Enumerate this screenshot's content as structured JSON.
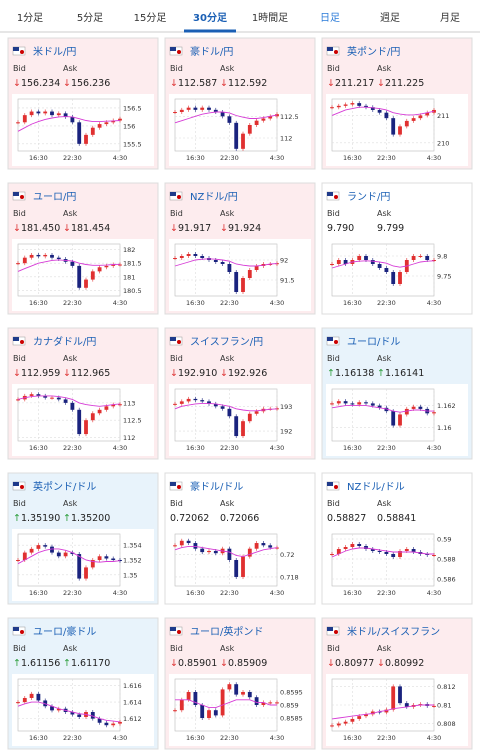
{
  "tabs": [
    "1分足",
    "5分足",
    "15分足",
    "30分足",
    "1時間足",
    "日足",
    "週足",
    "月足"
  ],
  "active_tab": 3,
  "link_tab": 5,
  "labels": {
    "bid": "Bid",
    "ask": "Ask"
  },
  "xlim": [
    0,
    15
  ],
  "xticks": [
    {
      "value": 3,
      "label": "16:30"
    },
    {
      "value": 8,
      "label": "22:30"
    },
    {
      "value": 15,
      "label": "4:30"
    }
  ],
  "tiles": [
    {
      "name": "米ドル/円",
      "arrow": "↓",
      "bid": "156.234",
      "ask": "156.236",
      "ylim": [
        155.3,
        156.75
      ],
      "yticks": [
        155.5,
        156,
        156.5
      ],
      "values": [
        156.1,
        156.3,
        156.4,
        156.35,
        156.4,
        156.3,
        156.35,
        156.25,
        156.1,
        155.5,
        155.75,
        155.95,
        156.05,
        156.1,
        156.15,
        156.2
      ],
      "ma": [
        155.85,
        155.95,
        156.05,
        156.12,
        156.18,
        156.22,
        156.25,
        156.26,
        156.25,
        156.2,
        156.15,
        156.12,
        156.12,
        156.13,
        156.14,
        156.15
      ]
    },
    {
      "name": "豪ドル/円",
      "arrow": "↓",
      "bid": "112.587",
      "ask": "112.592",
      "ylim": [
        111.7,
        112.9
      ],
      "yticks": [
        112,
        112.5
      ],
      "values": [
        112.6,
        112.65,
        112.7,
        112.65,
        112.7,
        112.65,
        112.6,
        112.5,
        112.35,
        111.75,
        112.1,
        112.3,
        112.4,
        112.45,
        112.5,
        112.55
      ],
      "ma": [
        112.35,
        112.4,
        112.45,
        112.5,
        112.55,
        112.58,
        112.6,
        112.6,
        112.58,
        112.52,
        112.48,
        112.45,
        112.45,
        112.47,
        112.5,
        112.53
      ]
    },
    {
      "name": "英ポンド/円",
      "arrow": "↓",
      "bid": "211.217",
      "ask": "211.225",
      "ylim": [
        209.7,
        211.6
      ],
      "yticks": [
        210,
        211
      ],
      "values": [
        211.3,
        211.35,
        211.4,
        211.45,
        211.35,
        211.3,
        211.2,
        211.1,
        210.9,
        210.3,
        210.6,
        210.8,
        210.9,
        211.0,
        211.1,
        211.2
      ],
      "ma": [
        211.0,
        211.1,
        211.2,
        211.25,
        211.3,
        211.3,
        211.28,
        211.25,
        211.2,
        211.1,
        211.05,
        211.02,
        211.02,
        211.05,
        211.1,
        211.15
      ]
    },
    {
      "name": "ユーロ/円",
      "arrow": "↓",
      "bid": "181.450",
      "ask": "181.454",
      "ylim": [
        180.3,
        182.2
      ],
      "yticks": [
        180.5,
        181,
        181.5,
        182
      ],
      "values": [
        181.5,
        181.7,
        181.8,
        181.75,
        181.8,
        181.7,
        181.65,
        181.55,
        181.4,
        180.6,
        180.9,
        181.2,
        181.35,
        181.4,
        181.45,
        181.45
      ],
      "ma": [
        181.2,
        181.3,
        181.4,
        181.5,
        181.55,
        181.6,
        181.62,
        181.6,
        181.58,
        181.5,
        181.45,
        181.42,
        181.42,
        181.43,
        181.45,
        181.46
      ]
    },
    {
      "name": "NZドル/円",
      "arrow": "↓",
      "bid": "91.917",
      "ask": "91.924",
      "ylim": [
        91.1,
        92.4
      ],
      "yticks": [
        91.5,
        92
      ],
      "values": [
        92.05,
        92.1,
        92.15,
        92.1,
        92.05,
        92.0,
        91.95,
        91.9,
        91.7,
        91.2,
        91.55,
        91.75,
        91.85,
        91.9,
        91.9,
        91.92
      ],
      "ma": [
        91.85,
        91.9,
        91.95,
        92.0,
        92.02,
        92.03,
        92.02,
        92.0,
        91.97,
        91.9,
        91.87,
        91.85,
        91.85,
        91.87,
        91.9,
        91.91
      ]
    },
    {
      "name": "ランド/円",
      "arrow": null,
      "bid": "9.790",
      "ask": "9.799",
      "ylim": [
        9.7,
        9.83
      ],
      "yticks": [
        9.75,
        9.8
      ],
      "values": [
        9.78,
        9.79,
        9.78,
        9.79,
        9.8,
        9.79,
        9.78,
        9.77,
        9.76,
        9.73,
        9.76,
        9.79,
        9.8,
        9.8,
        9.79,
        9.79
      ],
      "ma": [
        9.77,
        9.775,
        9.78,
        9.785,
        9.787,
        9.788,
        9.787,
        9.785,
        9.782,
        9.775,
        9.772,
        9.775,
        9.78,
        9.785,
        9.787,
        9.788
      ]
    },
    {
      "name": "カナダドル/円",
      "arrow": "↓",
      "bid": "112.959",
      "ask": "112.965",
      "ylim": [
        111.9,
        113.4
      ],
      "yticks": [
        112,
        112.5,
        113
      ],
      "values": [
        113.1,
        113.2,
        113.25,
        113.2,
        113.15,
        113.15,
        113.1,
        113.0,
        112.8,
        112.1,
        112.5,
        112.7,
        112.8,
        112.9,
        112.95,
        112.96
      ],
      "ma": [
        113.1,
        113.15,
        113.18,
        113.2,
        113.2,
        113.2,
        113.18,
        113.15,
        113.1,
        113.0,
        112.95,
        112.92,
        112.9,
        112.92,
        112.95,
        112.97
      ]
    },
    {
      "name": "スイスフラン/円",
      "arrow": "↓",
      "bid": "192.910",
      "ask": "192.926",
      "ylim": [
        191.6,
        193.7
      ],
      "yticks": [
        192,
        193
      ],
      "values": [
        193.1,
        193.2,
        193.3,
        193.25,
        193.2,
        193.1,
        193.0,
        192.9,
        192.6,
        191.8,
        192.4,
        192.7,
        192.8,
        192.9,
        192.9,
        192.92
      ],
      "ma": [
        192.9,
        193.0,
        193.05,
        193.1,
        193.12,
        193.12,
        193.1,
        193.05,
        193.0,
        192.9,
        192.85,
        192.82,
        192.82,
        192.85,
        192.88,
        192.9
      ]
    },
    {
      "name": "ユーロ/ドル",
      "arrow": "↑",
      "bid": "1.16138",
      "ask": "1.16141",
      "ylim": [
        1.1588,
        1.1635
      ],
      "yticks": [
        1.16,
        1.162
      ],
      "values": [
        1.1622,
        1.1624,
        1.1622,
        1.1621,
        1.1623,
        1.1622,
        1.162,
        1.1618,
        1.1615,
        1.1602,
        1.1612,
        1.1617,
        1.1619,
        1.1617,
        1.1613,
        1.1614
      ],
      "ma": [
        1.1618,
        1.1619,
        1.162,
        1.162,
        1.162,
        1.162,
        1.1619,
        1.1618,
        1.1617,
        1.1615,
        1.1614,
        1.1615,
        1.1616,
        1.1616,
        1.1615,
        1.1615
      ]
    },
    {
      "name": "英ポンド/ドル",
      "arrow": "↑",
      "bid": "1.35190",
      "ask": "1.35200",
      "ylim": [
        1.3485,
        1.3555
      ],
      "yticks": [
        1.35,
        1.352,
        1.354
      ],
      "values": [
        1.352,
        1.353,
        1.3535,
        1.354,
        1.3538,
        1.353,
        1.3525,
        1.353,
        1.3528,
        1.3495,
        1.351,
        1.352,
        1.3525,
        1.3522,
        1.352,
        1.3519
      ],
      "ma": [
        1.3515,
        1.352,
        1.3525,
        1.353,
        1.3533,
        1.3535,
        1.3535,
        1.3533,
        1.353,
        1.3525,
        1.352,
        1.3518,
        1.3517,
        1.3518,
        1.3518,
        1.3519
      ]
    },
    {
      "name": "豪ドル/ドル",
      "arrow": null,
      "bid": "0.72062",
      "ask": "0.72066",
      "ylim": [
        0.7172,
        0.7218
      ],
      "yticks": [
        0.718,
        0.72
      ],
      "values": [
        0.7208,
        0.7212,
        0.721,
        0.7205,
        0.7202,
        0.7203,
        0.7201,
        0.7205,
        0.7195,
        0.718,
        0.7198,
        0.7205,
        0.721,
        0.7208,
        0.7206,
        0.7206
      ],
      "ma": [
        0.7204,
        0.7206,
        0.7207,
        0.7207,
        0.7206,
        0.7205,
        0.7204,
        0.7203,
        0.7202,
        0.7199,
        0.7198,
        0.72,
        0.7202,
        0.7204,
        0.7205,
        0.7206
      ]
    },
    {
      "name": "NZドル/ドル",
      "arrow": null,
      "bid": "0.58827",
      "ask": "0.58841",
      "ylim": [
        0.5853,
        0.5905
      ],
      "yticks": [
        0.586,
        0.588,
        0.59
      ],
      "values": [
        0.5885,
        0.589,
        0.5892,
        0.5895,
        0.5893,
        0.589,
        0.5888,
        0.5887,
        0.5885,
        0.5882,
        0.5888,
        0.589,
        0.5887,
        0.5885,
        0.5884,
        0.5884
      ],
      "ma": [
        0.5882,
        0.5885,
        0.5888,
        0.589,
        0.5891,
        0.5891,
        0.589,
        0.5889,
        0.5888,
        0.5887,
        0.5887,
        0.5887,
        0.5887,
        0.5886,
        0.5885,
        0.5885
      ]
    },
    {
      "name": "ユーロ/豪ドル",
      "arrow": "↑",
      "bid": "1.61156",
      "ask": "1.61170",
      "ylim": [
        1.6105,
        1.6168
      ],
      "yticks": [
        1.612,
        1.614,
        1.616
      ],
      "values": [
        1.614,
        1.6145,
        1.615,
        1.6142,
        1.6135,
        1.613,
        1.6132,
        1.6128,
        1.6125,
        1.6122,
        1.6128,
        1.612,
        1.6115,
        1.6112,
        1.6114,
        1.6116
      ],
      "ma": [
        1.6135,
        1.6138,
        1.614,
        1.614,
        1.6138,
        1.6135,
        1.6132,
        1.613,
        1.6128,
        1.6126,
        1.6125,
        1.6123,
        1.612,
        1.6118,
        1.6117,
        1.6116
      ]
    },
    {
      "name": "ユーロ/英ポンド",
      "arrow": "↓",
      "bid": "0.85901",
      "ask": "0.85909",
      "ylim": [
        0.858,
        0.86
      ],
      "yticks": [
        0.8585,
        0.859,
        0.8595
      ],
      "values": [
        0.8588,
        0.8592,
        0.8595,
        0.859,
        0.8585,
        0.8588,
        0.8586,
        0.8596,
        0.8598,
        0.8594,
        0.8595,
        0.8593,
        0.859,
        0.8591,
        0.8591,
        0.8591
      ],
      "ma": [
        0.8592,
        0.8592,
        0.8592,
        0.8591,
        0.859,
        0.8589,
        0.8589,
        0.859,
        0.8591,
        0.8592,
        0.8592,
        0.8592,
        0.8591,
        0.8591,
        0.859,
        0.859
      ]
    },
    {
      "name": "米ドル/スイスフラン",
      "arrow": "↓",
      "bid": "0.80977",
      "ask": "0.80992",
      "ylim": [
        0.8072,
        0.8128
      ],
      "yticks": [
        0.808,
        0.81,
        0.812
      ],
      "values": [
        0.8078,
        0.808,
        0.8082,
        0.8085,
        0.8088,
        0.809,
        0.8093,
        0.8092,
        0.8095,
        0.812,
        0.8102,
        0.8098,
        0.81,
        0.8101,
        0.8099,
        0.8099
      ],
      "ma": [
        0.8085,
        0.8086,
        0.8087,
        0.8088,
        0.8089,
        0.809,
        0.8091,
        0.8093,
        0.8094,
        0.8096,
        0.8097,
        0.8098,
        0.8099,
        0.81,
        0.81,
        0.81
      ]
    }
  ]
}
